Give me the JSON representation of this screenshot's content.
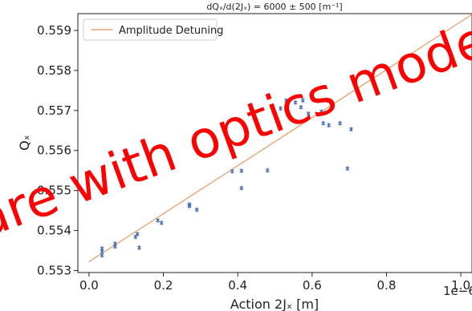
{
  "chart_data": {
    "type": "scatter",
    "title": "dQₓ/d(2Jₓ) = 6000 ± 500 [m⁻¹]",
    "xlabel": "Action 2Jₓ [m]",
    "ylabel": "Qₓ",
    "x_offset_label": "1e−6",
    "xlim": [
      -0.03,
      1.03
    ],
    "ylim": [
      0.55295,
      0.55942
    ],
    "x_ticks": [
      0.0,
      0.2,
      0.4,
      0.6,
      0.8,
      1.0
    ],
    "x_tick_labels": [
      "0.0",
      "0.2",
      "0.4",
      "0.6",
      "0.8",
      "1.0"
    ],
    "y_ticks": [
      0.553,
      0.554,
      0.555,
      0.556,
      0.557,
      0.558,
      0.559
    ],
    "y_tick_labels": [
      "0.553",
      "0.554",
      "0.555",
      "0.556",
      "0.557",
      "0.558",
      "0.559"
    ],
    "legend": {
      "placement": "top-left",
      "entries": [
        "Amplitude Detuning"
      ]
    },
    "fit_line": {
      "name": "Amplitude Detuning",
      "color": "#e8a06e",
      "x": [
        0.0,
        1.03
      ],
      "y": [
        0.55322,
        0.5594
      ]
    },
    "points_color": "#4a6fb5",
    "points": [
      {
        "x": 0.035,
        "y": 0.55338
      },
      {
        "x": 0.035,
        "y": 0.55348
      },
      {
        "x": 0.035,
        "y": 0.55355
      },
      {
        "x": 0.07,
        "y": 0.5536
      },
      {
        "x": 0.07,
        "y": 0.55367
      },
      {
        "x": 0.125,
        "y": 0.55384
      },
      {
        "x": 0.13,
        "y": 0.55391
      },
      {
        "x": 0.135,
        "y": 0.55357
      },
      {
        "x": 0.185,
        "y": 0.55425
      },
      {
        "x": 0.195,
        "y": 0.55419
      },
      {
        "x": 0.27,
        "y": 0.55461
      },
      {
        "x": 0.27,
        "y": 0.55465
      },
      {
        "x": 0.29,
        "y": 0.55452
      },
      {
        "x": 0.385,
        "y": 0.55548
      },
      {
        "x": 0.41,
        "y": 0.55549
      },
      {
        "x": 0.41,
        "y": 0.55506
      },
      {
        "x": 0.48,
        "y": 0.5555
      },
      {
        "x": 0.515,
        "y": 0.55705
      },
      {
        "x": 0.53,
        "y": 0.55725
      },
      {
        "x": 0.555,
        "y": 0.5572
      },
      {
        "x": 0.57,
        "y": 0.55708
      },
      {
        "x": 0.575,
        "y": 0.55725
      },
      {
        "x": 0.59,
        "y": 0.55692
      },
      {
        "x": 0.625,
        "y": 0.55697
      },
      {
        "x": 0.63,
        "y": 0.55668
      },
      {
        "x": 0.64,
        "y": 0.55725
      },
      {
        "x": 0.645,
        "y": 0.55663
      },
      {
        "x": 0.675,
        "y": 0.55668
      },
      {
        "x": 0.695,
        "y": 0.55555
      },
      {
        "x": 0.705,
        "y": 0.55653
      }
    ]
  },
  "watermark": {
    "line1": "are with optics model ?",
    "color": "#ff0000"
  }
}
